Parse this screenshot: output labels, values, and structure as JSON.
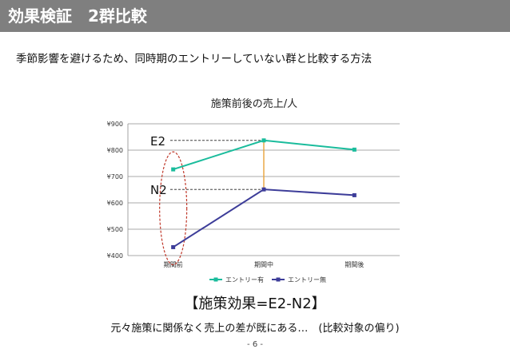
{
  "slide": {
    "title": "効果検証　2群比較",
    "subtitle": "季節影響を避けるため、同時期のエントリーしていない群と比較する方法",
    "formula": "【施策効果=E2-N2】",
    "note": "元々施策に関係なく売上の差が既にある…　(比較対象の偏り)",
    "page_number": "- 6 -"
  },
  "chart_data": {
    "type": "line",
    "title": "施策前後の売上/人",
    "categories": [
      "期間前",
      "期間中",
      "期間後"
    ],
    "series": [
      {
        "name": "エントリー有",
        "values": [
          727,
          837,
          802
        ],
        "color": "#1abc9c"
      },
      {
        "name": "エントリー無",
        "values": [
          432,
          651,
          629
        ],
        "color": "#3d3d99"
      }
    ],
    "ylim": [
      400,
      900
    ],
    "yticks": [
      400,
      500,
      600,
      700,
      800,
      900
    ],
    "ytick_labels": [
      "¥400",
      "¥500",
      "¥600",
      "¥700",
      "¥800",
      "¥900"
    ],
    "grid": true,
    "legend_position": "bottom",
    "annotations": {
      "e2_label": "E2",
      "n2_label": "N2",
      "difference_line_color": "#e8a33a",
      "highlight_ellipse_color": "#c0392b"
    }
  }
}
